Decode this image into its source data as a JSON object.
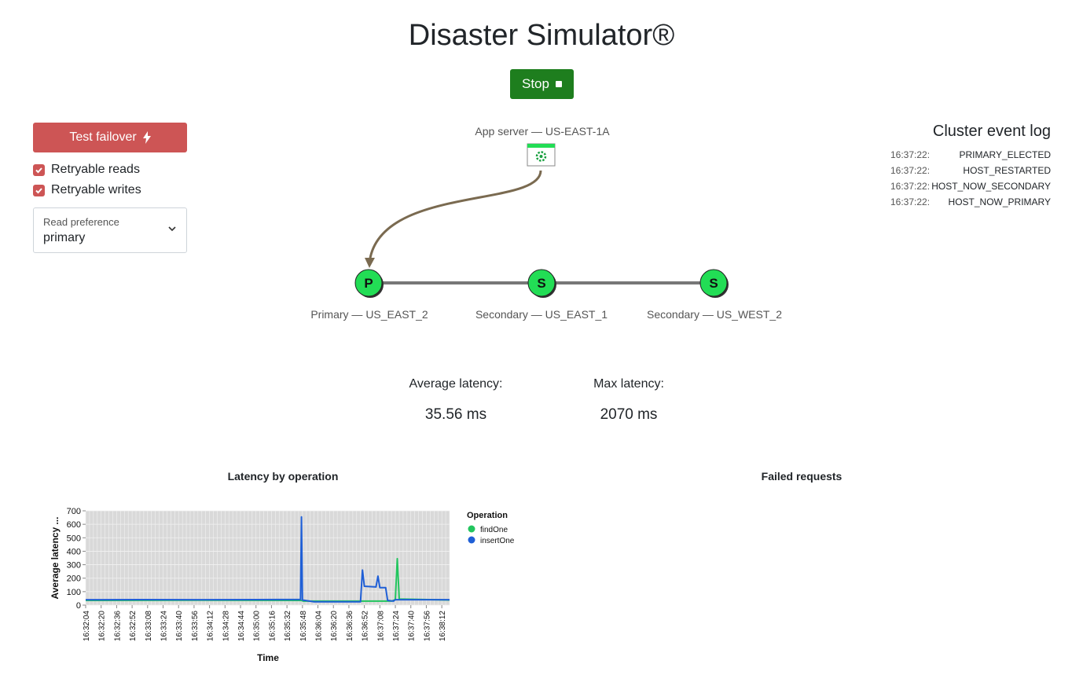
{
  "page": {
    "title": "Disaster Simulator®"
  },
  "controls": {
    "stop_label": "Stop",
    "failover_label": "Test failover",
    "retryable_reads_label": "Retryable reads",
    "retryable_writes_label": "Retryable writes",
    "retryable_reads_checked": true,
    "retryable_writes_checked": true,
    "read_preference": {
      "label": "Read preference",
      "value": "primary"
    }
  },
  "topology": {
    "app_server_label": "App server — US-EAST-1A",
    "nodes": [
      {
        "letter": "P",
        "label": "Primary — US_EAST_2"
      },
      {
        "letter": "S",
        "label": "Secondary — US_EAST_1"
      },
      {
        "letter": "S",
        "label": "Secondary — US_WEST_2"
      }
    ]
  },
  "event_log": {
    "title": "Cluster event log",
    "entries": [
      {
        "time": "16:37:22:",
        "event": "PRIMARY_ELECTED"
      },
      {
        "time": "16:37:22:",
        "event": "HOST_RESTARTED"
      },
      {
        "time": "16:37:22:",
        "event": "HOST_NOW_SECONDARY"
      },
      {
        "time": "16:37:22:",
        "event": "HOST_NOW_PRIMARY"
      }
    ]
  },
  "stats": {
    "avg_label": "Average latency:",
    "avg_value": "35.56 ms",
    "max_label": "Max latency:",
    "max_value": "2070 ms"
  },
  "charts": {
    "failed_title": "Failed requests"
  },
  "colors": {
    "findOne": "#22c55e",
    "insertOne": "#1f5fd6",
    "node_fill": "#22dd55",
    "link": "#7a6a50"
  },
  "chart_data": {
    "type": "line",
    "title": "Latency by operation",
    "xlabel": "Time",
    "ylabel": "Average latency ...",
    "ylim": [
      0,
      700
    ],
    "yticks": [
      0,
      100,
      200,
      300,
      400,
      500,
      600,
      700
    ],
    "x_range": [
      "16:32:04",
      "16:38:20"
    ],
    "xticks": [
      "16:32:04",
      "16:32:20",
      "16:32:36",
      "16:32:52",
      "16:33:08",
      "16:33:24",
      "16:33:40",
      "16:33:56",
      "16:34:12",
      "16:34:28",
      "16:34:44",
      "16:35:00",
      "16:35:16",
      "16:35:32",
      "16:35:48",
      "16:36:04",
      "16:36:20",
      "16:36:36",
      "16:36:52",
      "16:37:08",
      "16:37:24",
      "16:37:40",
      "16:37:56",
      "16:38:12"
    ],
    "legend_title": "Operation",
    "legend_position": "right",
    "grid": true,
    "series": [
      {
        "name": "findOne",
        "color": "#22c55e",
        "points": [
          [
            "16:32:04",
            35
          ],
          [
            "16:34:00",
            36
          ],
          [
            "16:35:47",
            35
          ],
          [
            "16:35:49",
            30
          ],
          [
            "16:36:50",
            30
          ],
          [
            "16:37:20",
            30
          ],
          [
            "16:37:24",
            40
          ],
          [
            "16:37:26",
            345
          ],
          [
            "16:37:28",
            45
          ],
          [
            "16:38:20",
            38
          ]
        ]
      },
      {
        "name": "insertOne",
        "color": "#1f5fd6",
        "points": [
          [
            "16:32:04",
            40
          ],
          [
            "16:33:00",
            41
          ],
          [
            "16:34:00",
            40
          ],
          [
            "16:35:00",
            41
          ],
          [
            "16:35:46",
            42
          ],
          [
            "16:35:47",
            655
          ],
          [
            "16:35:48",
            38
          ],
          [
            "16:36:00",
            25
          ],
          [
            "16:36:48",
            25
          ],
          [
            "16:36:50",
            260
          ],
          [
            "16:36:52",
            140
          ],
          [
            "16:37:04",
            135
          ],
          [
            "16:37:06",
            215
          ],
          [
            "16:37:08",
            130
          ],
          [
            "16:37:14",
            130
          ],
          [
            "16:37:16",
            35
          ],
          [
            "16:37:22",
            30
          ],
          [
            "16:37:24",
            40
          ],
          [
            "16:38:20",
            40
          ]
        ]
      }
    ]
  }
}
